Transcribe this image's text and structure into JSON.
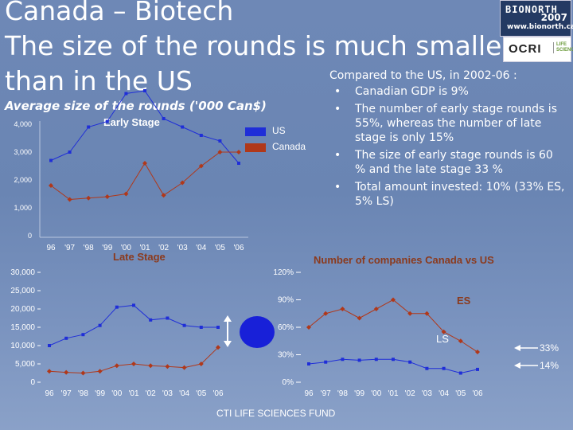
{
  "title": {
    "line1": "Canada – Biotech",
    "line2": "The size of the rounds is much smaller",
    "line3": "than in the US"
  },
  "subtitle": "Average size of the rounds ('000 Can$)",
  "logos": {
    "bionorth_name": "BIONORTH",
    "bionorth_year": "2007",
    "bionorth_url": "www.bionorth.ca",
    "ocri_name": "OCRI",
    "ocri_tag": "LIFE SCIENCES"
  },
  "bullets": {
    "heading": "Compared to the US, in 2002-06 :",
    "items": [
      "Canadian GDP is 9%",
      "The number of early stage rounds is 55%, whereas the number of late stage is only 15%",
      "The size of early stage rounds is 60 % and the late stage 33 %",
      "Total amount invested: 10% (33% ES, 5% LS)"
    ]
  },
  "chart_data": [
    {
      "type": "line",
      "title": "Early Stage",
      "categories": [
        "96",
        "97",
        "98",
        "99",
        "00",
        "01",
        "02",
        "03",
        "04",
        "05",
        "06"
      ],
      "series": [
        {
          "name": "US",
          "color": "#1f2ed8",
          "values": [
            2700,
            3000,
            3900,
            4100,
            5100,
            5200,
            4200,
            3900,
            3600,
            3400,
            2600
          ]
        },
        {
          "name": "Canada",
          "color": "#b0381a",
          "values": [
            1800,
            1300,
            1350,
            1400,
            1500,
            2600,
            1450,
            1900,
            2500,
            3000,
            3000
          ]
        }
      ],
      "yticks": [
        "0",
        "1,000",
        "2,000",
        "3,000",
        "4,000"
      ],
      "ylim": [
        0,
        4000
      ],
      "legend_position": "top-right"
    },
    {
      "type": "line",
      "title": "Late Stage",
      "categories": [
        "96",
        "97",
        "98",
        "99",
        "00",
        "01",
        "02",
        "03",
        "04",
        "05",
        "06"
      ],
      "series": [
        {
          "name": "US",
          "color": "#1f2ed8",
          "values": [
            10000,
            12000,
            13000,
            15500,
            20500,
            21000,
            17000,
            17500,
            15500,
            15000,
            15000
          ]
        },
        {
          "name": "Canada",
          "color": "#b0381a",
          "values": [
            3000,
            2700,
            2500,
            3000,
            4500,
            5000,
            4500,
            4300,
            4000,
            5000,
            9500
          ]
        }
      ],
      "yticks": [
        "0",
        "5,000",
        "10,000",
        "15,000",
        "20,000",
        "25,000",
        "30,000"
      ],
      "ylim": [
        0,
        30000
      ]
    },
    {
      "type": "line",
      "title": "Number of companies Canada vs US",
      "categories": [
        "96",
        "97",
        "98",
        "99",
        "00",
        "01",
        "02",
        "03",
        "04",
        "05",
        "06"
      ],
      "series": [
        {
          "name": "ES",
          "color": "#b0381a",
          "values": [
            60,
            75,
            80,
            70,
            80,
            90,
            75,
            75,
            55,
            45,
            33
          ]
        },
        {
          "name": "LS",
          "color": "#1f2ed8",
          "values": [
            20,
            22,
            25,
            24,
            25,
            25,
            22,
            15,
            15,
            10,
            14
          ]
        }
      ],
      "yticks": [
        "0%",
        "30%",
        "60%",
        "90%",
        "120%"
      ],
      "ylim": [
        0,
        120
      ],
      "annotations": [
        "33%",
        "14%"
      ]
    }
  ],
  "footer": "CTI LIFE SCIENCES FUND"
}
